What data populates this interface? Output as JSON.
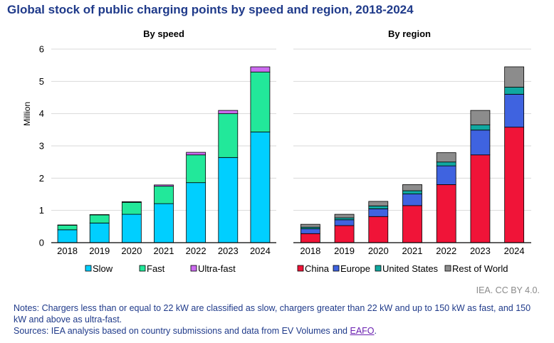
{
  "title": "Global stock of public charging points by speed and region, 2018-2024",
  "credit": "IEA. CC BY 4.0.",
  "notes": {
    "notes_text": "Notes: Chargers less than or equal to 22 kW are classified as slow, chargers greater than 22 kW and up to 150 kW as fast, and 150 kW and above as ultra-fast.",
    "sources_prefix": "Sources: IEA analysis based on country submissions and data from EV Volumes and ",
    "sources_link": "EAFO",
    "sources_suffix": "."
  },
  "chart_data": [
    {
      "type": "bar",
      "stacked": true,
      "title": "By speed",
      "ylabel": "Million",
      "ylim": [
        0,
        6
      ],
      "yticks": [
        0,
        1,
        2,
        3,
        4,
        5,
        6
      ],
      "categories": [
        "2018",
        "2019",
        "2020",
        "2021",
        "2022",
        "2023",
        "2024"
      ],
      "legend_position": "bottom",
      "series": [
        {
          "name": "Slow",
          "color": "#00cfff",
          "values": [
            0.4,
            0.61,
            0.88,
            1.21,
            1.86,
            2.64,
            3.43
          ]
        },
        {
          "name": "Fast",
          "color": "#22e89a",
          "values": [
            0.14,
            0.25,
            0.37,
            0.54,
            0.86,
            1.36,
            1.86
          ]
        },
        {
          "name": "Ultra-fast",
          "color": "#cc6bf0",
          "values": [
            0.01,
            0.01,
            0.02,
            0.04,
            0.08,
            0.1,
            0.16
          ]
        }
      ]
    },
    {
      "type": "bar",
      "stacked": true,
      "title": "By region",
      "ylim": [
        0,
        6
      ],
      "yticks": [
        0,
        1,
        2,
        3,
        4,
        5,
        6
      ],
      "categories": [
        "2018",
        "2019",
        "2020",
        "2021",
        "2022",
        "2023",
        "2024"
      ],
      "legend_position": "bottom",
      "series": [
        {
          "name": "China",
          "color": "#f01438",
          "values": [
            0.28,
            0.53,
            0.81,
            1.15,
            1.8,
            2.72,
            3.58
          ]
        },
        {
          "name": "Europe",
          "color": "#3f63e0",
          "values": [
            0.15,
            0.18,
            0.24,
            0.36,
            0.58,
            0.77,
            1.02
          ]
        },
        {
          "name": "United States",
          "color": "#10a8a0",
          "values": [
            0.05,
            0.06,
            0.09,
            0.1,
            0.12,
            0.16,
            0.22
          ]
        },
        {
          "name": "Rest of World",
          "color": "#8c8c8c",
          "values": [
            0.09,
            0.11,
            0.14,
            0.19,
            0.29,
            0.45,
            0.63
          ]
        }
      ]
    }
  ]
}
